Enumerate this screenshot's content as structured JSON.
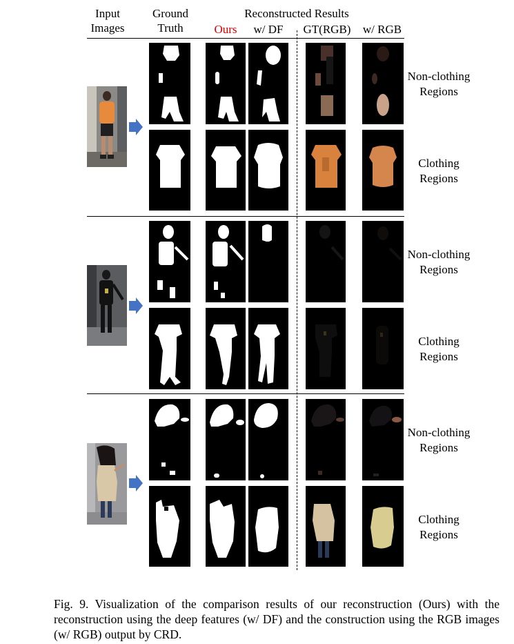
{
  "headers": {
    "input_images": [
      "Input",
      "Images"
    ],
    "ground_truth": [
      "Ground",
      "Truth"
    ],
    "reconstructed_results": "Reconstructed Results",
    "ours": "Ours",
    "w_df": "w/ DF",
    "gt_rgb": "GT(RGB)",
    "w_rgb": "w/ RGB"
  },
  "row_labels": {
    "non_clothing": [
      "Non-clothing",
      "Regions"
    ],
    "clothing": [
      "Clothing",
      "Regions"
    ]
  },
  "caption": "Fig. 9.  Visualization of the comparison results of our reconstruction (Ours) with the reconstruction using the deep features (w/ DF) and the construction using the RGB images (w/ RGB) output by CRD.",
  "colors": {
    "ours_label": "#e00000",
    "arrow": "#4472c4",
    "mask_background": "#000000",
    "mask_foreground": "#ffffff"
  }
}
